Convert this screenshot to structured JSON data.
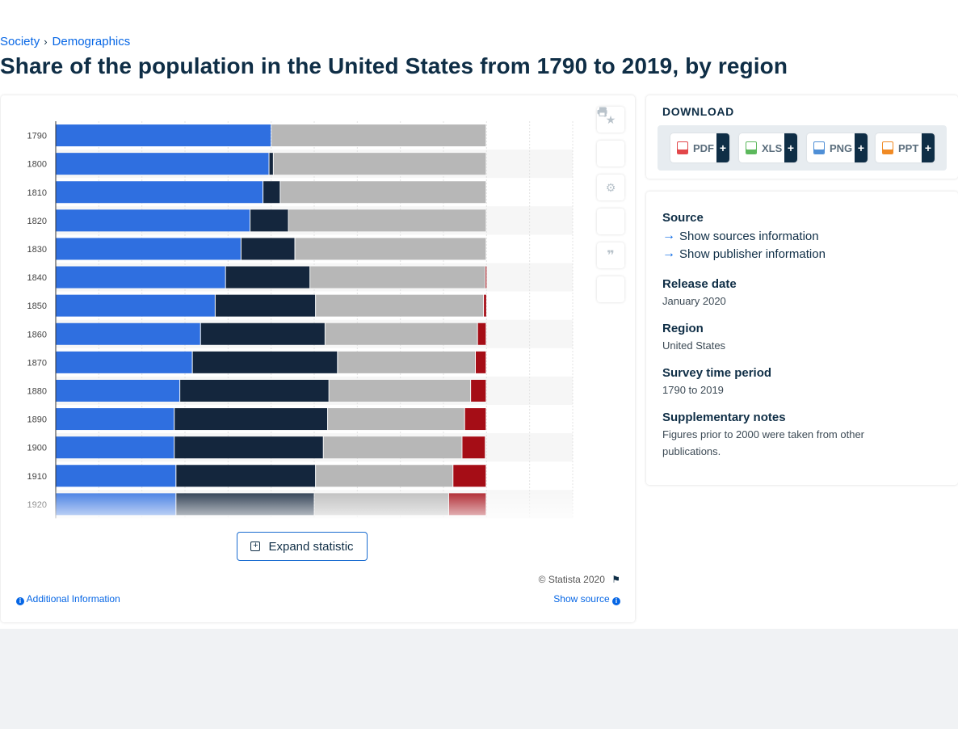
{
  "breadcrumb": {
    "items": [
      "Society",
      "Demographics"
    ]
  },
  "page_title": "Share of the population in the United States from 1790 to 2019, by region",
  "chart": {
    "expand_label": "Expand statistic",
    "copyright": "© Statista 2020",
    "additional_info": "Additional Information",
    "show_source": "Show source"
  },
  "side_tools": [
    "star-icon",
    "bell-icon",
    "gear-icon",
    "share-icon",
    "quote-icon",
    "print-icon"
  ],
  "download": {
    "title": "DOWNLOAD",
    "buttons": [
      {
        "label": "PDF",
        "color": "#e2474a"
      },
      {
        "label": "XLS",
        "color": "#5cb85c"
      },
      {
        "label": "PNG",
        "color": "#4f8fd6"
      },
      {
        "label": "PPT",
        "color": "#f08a24"
      }
    ]
  },
  "meta": {
    "source_label": "Source",
    "show_sources": "Show sources information",
    "show_publisher": "Show publisher information",
    "release_date_label": "Release date",
    "release_date": "January 2020",
    "region_label": "Region",
    "region": "United States",
    "survey_period_label": "Survey time period",
    "survey_period": "1790 to 2019",
    "notes_label": "Supplementary notes",
    "notes": "Figures prior to 2000 were taken from other publications."
  },
  "chart_data": {
    "type": "bar",
    "orientation": "horizontal",
    "stacked": true,
    "categories": [
      "1790",
      "1800",
      "1810",
      "1820",
      "1830",
      "1840",
      "1850",
      "1860",
      "1870",
      "1880",
      "1890",
      "1900",
      "1910",
      "1920"
    ],
    "series": [
      {
        "color": "#2f6fe0",
        "values": [
          50.1,
          49.6,
          48.2,
          45.2,
          43.1,
          39.5,
          37.1,
          33.7,
          31.8,
          28.9,
          27.6,
          27.6,
          28.0,
          28.0
        ]
      },
      {
        "color": "#14263d",
        "values": [
          0,
          1.0,
          4.0,
          8.9,
          12.5,
          19.6,
          23.3,
          28.9,
          33.7,
          34.6,
          35.6,
          34.6,
          32.4,
          32.1
        ]
      },
      {
        "color": "#b7b7b7",
        "values": [
          49.9,
          49.4,
          47.8,
          45.9,
          44.4,
          40.7,
          39.0,
          35.4,
          32.0,
          32.9,
          31.8,
          32.2,
          31.9,
          31.2
        ]
      },
      {
        "color": "#a50d16",
        "values": [
          0,
          0,
          0,
          0,
          0,
          0.1,
          0.7,
          2.0,
          2.5,
          3.6,
          5.0,
          5.4,
          7.7,
          8.7
        ]
      }
    ],
    "xlim": [
      0,
      120
    ],
    "grid": true,
    "legend": "none"
  }
}
